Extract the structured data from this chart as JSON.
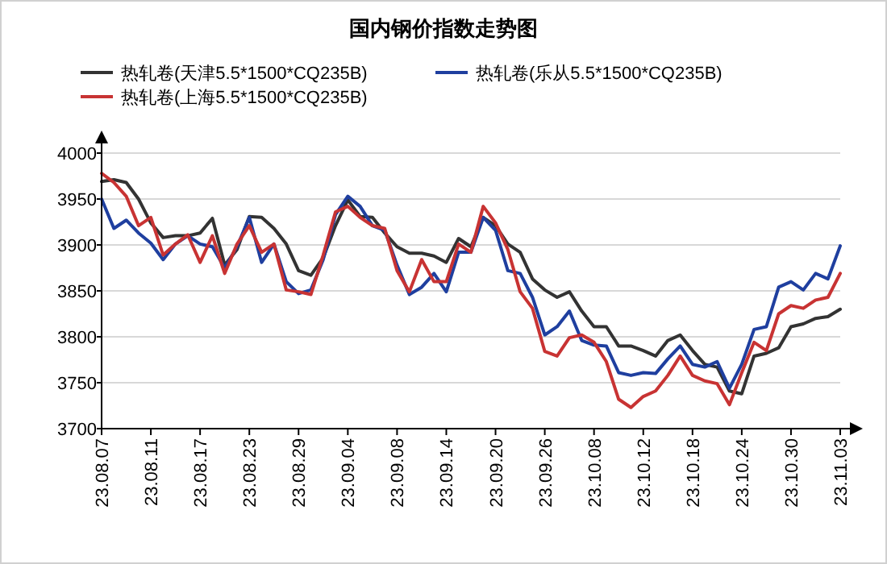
{
  "chart_data": {
    "type": "line",
    "title": "国内钢价指数走势图",
    "categories": [
      "23.08.07",
      null,
      null,
      null,
      "23.08.11",
      null,
      null,
      null,
      "23.08.17",
      null,
      null,
      null,
      "23.08.23",
      null,
      null,
      null,
      "23.08.29",
      null,
      null,
      null,
      "23.09.04",
      null,
      null,
      null,
      "23.09.08",
      null,
      null,
      null,
      "23.09.14",
      null,
      null,
      null,
      "23.09.20",
      null,
      null,
      null,
      "23.09.26",
      null,
      null,
      null,
      "23.10.08",
      null,
      null,
      null,
      "23.10.12",
      null,
      null,
      null,
      "23.10.18",
      null,
      null,
      null,
      "23.10.24",
      null,
      null,
      null,
      "23.10.30",
      null,
      null,
      null,
      "23.11.03"
    ],
    "series": [
      {
        "name": "热轧卷(天津5.5*1500*CQ235B)",
        "color": "#333333",
        "values": [
          3969,
          3971,
          3968,
          3950,
          3924,
          3908,
          3910,
          3910,
          3913,
          3929,
          3878,
          3895,
          3931,
          3930,
          3918,
          3901,
          3872,
          3867,
          3886,
          3921,
          3949,
          3931,
          3930,
          3913,
          3898,
          3891,
          3891,
          3888,
          3881,
          3907,
          3898,
          3930,
          3921,
          3901,
          3892,
          3863,
          3851,
          3843,
          3849,
          3828,
          3811,
          3811,
          3790,
          3790,
          3785,
          3779,
          3796,
          3802,
          3785,
          3770,
          3767,
          3741,
          3738,
          3779,
          3782,
          3788,
          3811,
          3814,
          3820,
          3822,
          3830
        ]
      },
      {
        "name": "热轧卷(乐从5.5*1500*CQ235B)",
        "color": "#1f3f9f",
        "values": [
          3950,
          3918,
          3927,
          3913,
          3902,
          3884,
          3901,
          3910,
          3901,
          3898,
          3875,
          3898,
          3930,
          3881,
          3901,
          3860,
          3847,
          3851,
          3884,
          3933,
          3953,
          3942,
          3921,
          3916,
          3878,
          3846,
          3854,
          3869,
          3849,
          3892,
          3892,
          3930,
          3916,
          3872,
          3869,
          3843,
          3802,
          3811,
          3828,
          3796,
          3791,
          3790,
          3761,
          3758,
          3761,
          3760,
          3776,
          3790,
          3770,
          3767,
          3773,
          3744,
          3770,
          3808,
          3811,
          3854,
          3860,
          3851,
          3869,
          3863,
          3899
        ]
      },
      {
        "name": "热轧卷(上海5.5*1500*CQ235B)",
        "color": "#c83333",
        "values": [
          3978,
          3968,
          3953,
          3921,
          3930,
          3889,
          3901,
          3911,
          3881,
          3910,
          3869,
          3901,
          3921,
          3892,
          3901,
          3851,
          3849,
          3846,
          3889,
          3936,
          3942,
          3930,
          3921,
          3918,
          3872,
          3849,
          3884,
          3860,
          3860,
          3901,
          3892,
          3942,
          3924,
          3895,
          3849,
          3831,
          3784,
          3779,
          3799,
          3802,
          3794,
          3773,
          3732,
          3723,
          3735,
          3741,
          3758,
          3779,
          3758,
          3752,
          3749,
          3726,
          3761,
          3794,
          3785,
          3825,
          3834,
          3831,
          3840,
          3843,
          3869
        ]
      }
    ],
    "ylim": [
      3700,
      4000
    ],
    "yticks": [
      3700,
      3750,
      3800,
      3850,
      3900,
      3950,
      4000
    ],
    "grid": "y",
    "legend": "top",
    "line_style": "solid",
    "marker": "none"
  }
}
